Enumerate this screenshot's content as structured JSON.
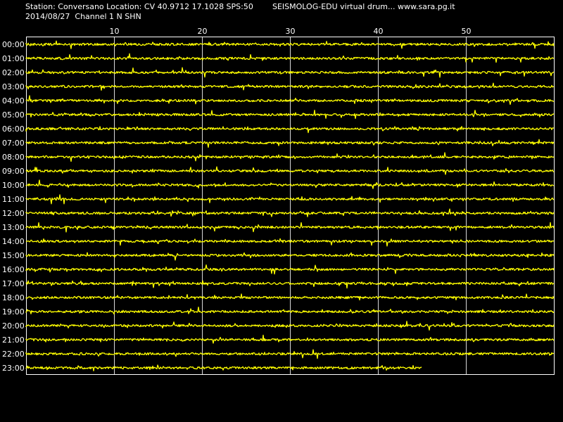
{
  "header": {
    "station_line": "Station: Conversano Location: CV 40.9712 17.1028 SPS:50",
    "source_line": "SEISMOLOG-EDU virtual drum... www.sara.pg.it",
    "date_line": "2014/08/27  Channel 1 N SHN"
  },
  "colors": {
    "background": "#000000",
    "trace": "#ffff00",
    "grid": "#ffffff",
    "text": "#ffffff"
  },
  "chart_data": {
    "type": "line",
    "title": "",
    "xlabel": "",
    "ylabel": "",
    "x_unit_shown": "minutes",
    "xlim": [
      0,
      60
    ],
    "x_ticks": [
      "10",
      "20",
      "30",
      "40",
      "50"
    ],
    "x_tick_values": [
      10,
      20,
      30,
      40,
      50
    ],
    "vertical_grid": true,
    "rows": [
      {
        "label": "00:00",
        "minutes": 60
      },
      {
        "label": "01:00",
        "minutes": 60
      },
      {
        "label": "02:00",
        "minutes": 60
      },
      {
        "label": "03:00",
        "minutes": 60
      },
      {
        "label": "04:00",
        "minutes": 60
      },
      {
        "label": "05:00",
        "minutes": 60
      },
      {
        "label": "06:00",
        "minutes": 60
      },
      {
        "label": "07:00",
        "minutes": 60
      },
      {
        "label": "08:00",
        "minutes": 60
      },
      {
        "label": "09:00",
        "minutes": 60
      },
      {
        "label": "10:00",
        "minutes": 60
      },
      {
        "label": "11:00",
        "minutes": 60
      },
      {
        "label": "12:00",
        "minutes": 60
      },
      {
        "label": "13:00",
        "minutes": 60
      },
      {
        "label": "14:00",
        "minutes": 60
      },
      {
        "label": "15:00",
        "minutes": 60
      },
      {
        "label": "16:00",
        "minutes": 60
      },
      {
        "label": "17:00",
        "minutes": 60
      },
      {
        "label": "18:00",
        "minutes": 60
      },
      {
        "label": "19:00",
        "minutes": 60
      },
      {
        "label": "20:00",
        "minutes": 60
      },
      {
        "label": "21:00",
        "minutes": 60
      },
      {
        "label": "22:00",
        "minutes": 60
      },
      {
        "label": "23:00",
        "minutes": 45
      }
    ]
  }
}
